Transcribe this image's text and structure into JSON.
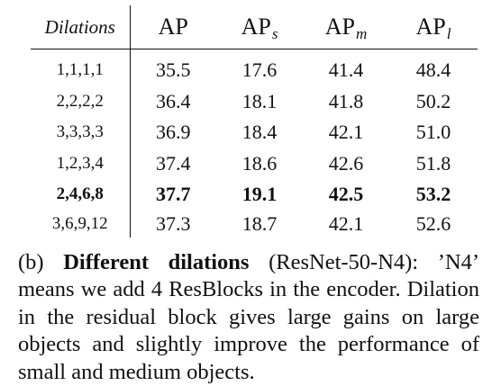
{
  "table": {
    "header": {
      "dilations": "Dilations",
      "ap": "AP",
      "ap_s": {
        "base": "AP",
        "sub": "s"
      },
      "ap_m": {
        "base": "AP",
        "sub": "m"
      },
      "ap_l": {
        "base": "AP",
        "sub": "l"
      }
    },
    "rows": [
      {
        "dilations": "1,1,1,1",
        "ap": "35.5",
        "ap_s": "17.6",
        "ap_m": "41.4",
        "ap_l": "48.4",
        "bold": false
      },
      {
        "dilations": "2,2,2,2",
        "ap": "36.4",
        "ap_s": "18.1",
        "ap_m": "41.8",
        "ap_l": "50.2",
        "bold": false
      },
      {
        "dilations": "3,3,3,3",
        "ap": "36.9",
        "ap_s": "18.4",
        "ap_m": "42.1",
        "ap_l": "51.0",
        "bold": false
      },
      {
        "dilations": "1,2,3,4",
        "ap": "37.4",
        "ap_s": "18.6",
        "ap_m": "42.6",
        "ap_l": "51.8",
        "bold": false
      },
      {
        "dilations": "2,4,6,8",
        "ap": "37.7",
        "ap_s": "19.1",
        "ap_m": "42.5",
        "ap_l": "53.2",
        "bold": true
      },
      {
        "dilations": "3,6,9,12",
        "ap": "37.3",
        "ap_s": "18.7",
        "ap_m": "42.1",
        "ap_l": "52.6",
        "bold": false
      }
    ]
  },
  "caption": {
    "label": "(b)",
    "title": "Different dilations",
    "text": "(ResNet-50-N4): ’N4’ means we add 4 ResBlocks in the encoder. Dilation in the residual block gives large gains on large objects and slightly improve the performance of small and medium objects."
  }
}
